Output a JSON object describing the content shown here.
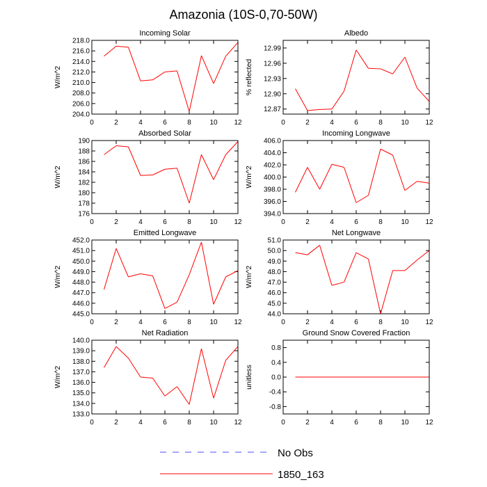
{
  "title": "Amazonia (10S-0,70-50W)",
  "legend": [
    {
      "label": "No Obs",
      "color": "#4b4bff",
      "dashed": true
    },
    {
      "label": "1850_163",
      "color": "#ff0000",
      "dashed": false
    }
  ],
  "chart_data": [
    {
      "type": "line",
      "title": "Incoming Solar",
      "ylabel": "W/m^2",
      "xlim": [
        0,
        12
      ],
      "xticks": [
        0,
        2,
        4,
        6,
        8,
        10,
        12
      ],
      "ylim": [
        204,
        218
      ],
      "yticks": [
        "204.0",
        "206.0",
        "208.0",
        "210.0",
        "212.0",
        "214.0",
        "216.0",
        "218.0"
      ],
      "x": [
        1,
        2,
        3,
        4,
        5,
        6,
        7,
        8,
        9,
        10,
        11,
        12
      ],
      "values": [
        215.0,
        216.9,
        216.7,
        210.3,
        210.5,
        212.0,
        212.2,
        204.5,
        215.1,
        209.8,
        215.0,
        217.6
      ]
    },
    {
      "type": "line",
      "title": "Albedo",
      "ylabel": "% reflected",
      "xlim": [
        0,
        12
      ],
      "xticks": [
        0,
        2,
        4,
        6,
        8,
        10,
        12
      ],
      "ylim": [
        12.86,
        13.005
      ],
      "yticks": [
        "12.87",
        "12.90",
        "12.93",
        "12.96",
        "12.99"
      ],
      "x": [
        1,
        2,
        3,
        4,
        5,
        6,
        7,
        8,
        9,
        10,
        11,
        12
      ],
      "values": [
        12.91,
        12.867,
        12.869,
        12.87,
        12.905,
        12.986,
        12.95,
        12.949,
        12.939,
        12.972,
        12.911,
        12.885
      ]
    },
    {
      "type": "line",
      "title": "Absorbed Solar",
      "ylabel": "W/m^2",
      "xlim": [
        0,
        12
      ],
      "xticks": [
        0,
        2,
        4,
        6,
        8,
        10,
        12
      ],
      "ylim": [
        176,
        190
      ],
      "yticks": [
        "176",
        "178",
        "180",
        "182",
        "184",
        "186",
        "188",
        "190"
      ],
      "x": [
        1,
        2,
        3,
        4,
        5,
        6,
        7,
        8,
        9,
        10,
        11,
        12
      ],
      "values": [
        187.3,
        189.0,
        188.8,
        183.3,
        183.4,
        184.5,
        184.7,
        178.0,
        187.3,
        182.5,
        187.3,
        189.8
      ]
    },
    {
      "type": "line",
      "title": "Incoming Longwave",
      "ylabel": "W/m^2",
      "xlim": [
        0,
        12
      ],
      "xticks": [
        0,
        2,
        4,
        6,
        8,
        10,
        12
      ],
      "ylim": [
        394,
        406
      ],
      "yticks": [
        "394.0",
        "396.0",
        "398.0",
        "400.0",
        "402.0",
        "404.0",
        "406.0"
      ],
      "x": [
        1,
        2,
        3,
        4,
        5,
        6,
        7,
        8,
        9,
        10,
        11,
        12
      ],
      "values": [
        397.5,
        401.6,
        398.0,
        402.1,
        401.6,
        395.8,
        397.0,
        404.6,
        403.6,
        397.8,
        399.3,
        399.0
      ]
    },
    {
      "type": "line",
      "title": "Emitted Longwave",
      "ylabel": "W/m^2",
      "xlim": [
        0,
        12
      ],
      "xticks": [
        0,
        2,
        4,
        6,
        8,
        10,
        12
      ],
      "ylim": [
        445,
        452
      ],
      "yticks": [
        "445.0",
        "446.0",
        "447.0",
        "448.0",
        "449.0",
        "450.0",
        "451.0",
        "452.0"
      ],
      "x": [
        1,
        2,
        3,
        4,
        5,
        6,
        7,
        8,
        9,
        10,
        11,
        12
      ],
      "values": [
        447.3,
        451.2,
        448.5,
        448.8,
        448.6,
        445.5,
        446.1,
        448.7,
        451.8,
        445.9,
        448.5,
        449.1
      ]
    },
    {
      "type": "line",
      "title": "Net Longwave",
      "ylabel": "W/m^2",
      "xlim": [
        0,
        12
      ],
      "xticks": [
        0,
        2,
        4,
        6,
        8,
        10,
        12
      ],
      "ylim": [
        44,
        51
      ],
      "yticks": [
        "44.0",
        "45.0",
        "46.0",
        "47.0",
        "48.0",
        "49.0",
        "50.0",
        "51.0"
      ],
      "x": [
        1,
        2,
        3,
        4,
        5,
        6,
        7,
        8,
        9,
        10,
        11,
        12
      ],
      "values": [
        49.8,
        49.6,
        50.5,
        46.7,
        47.0,
        49.8,
        49.2,
        44.0,
        48.1,
        48.1,
        49.1,
        50.0
      ]
    },
    {
      "type": "line",
      "title": "Net Radiation",
      "ylabel": "W/m^2",
      "xlim": [
        0,
        12
      ],
      "xticks": [
        0,
        2,
        4,
        6,
        8,
        10,
        12
      ],
      "ylim": [
        133,
        140
      ],
      "yticks": [
        "133.0",
        "134.0",
        "135.0",
        "136.0",
        "137.0",
        "138.0",
        "139.0",
        "140.0"
      ],
      "x": [
        1,
        2,
        3,
        4,
        5,
        6,
        7,
        8,
        9,
        10,
        11,
        12
      ],
      "values": [
        137.4,
        139.4,
        138.3,
        136.5,
        136.4,
        134.7,
        135.6,
        133.9,
        139.2,
        134.5,
        138.1,
        139.4
      ]
    },
    {
      "type": "line",
      "title": "Ground Snow Covered Fraction",
      "ylabel": "unitless",
      "xlim": [
        0,
        12
      ],
      "xticks": [
        0,
        2,
        4,
        6,
        8,
        10,
        12
      ],
      "ylim": [
        -1,
        1
      ],
      "yticks": [
        "-0.8",
        "-0.4",
        "0.0",
        "0.4",
        "0.8"
      ],
      "x": [
        1,
        2,
        3,
        4,
        5,
        6,
        7,
        8,
        9,
        10,
        11,
        12
      ],
      "values": [
        0,
        0,
        0,
        0,
        0,
        0,
        0,
        0,
        0,
        0,
        0,
        0
      ]
    }
  ]
}
